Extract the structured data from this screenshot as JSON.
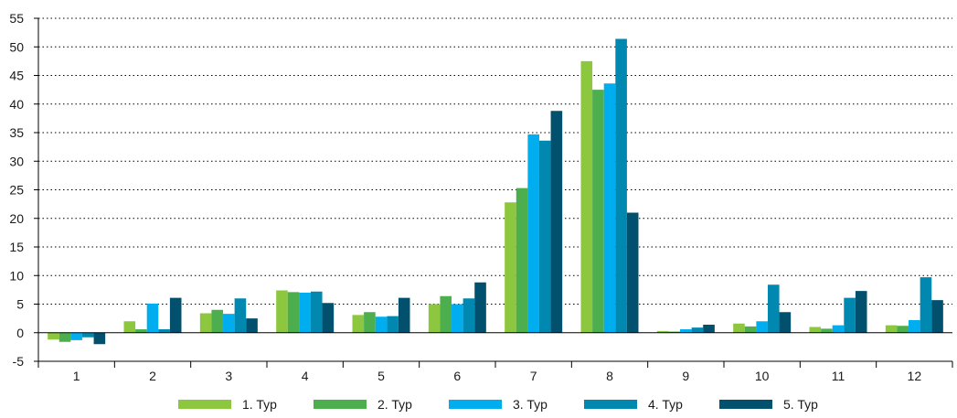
{
  "chart_data": {
    "type": "bar",
    "title": "",
    "xlabel": "",
    "ylabel": "",
    "categories": [
      "1",
      "2",
      "3",
      "4",
      "5",
      "6",
      "7",
      "8",
      "9",
      "10",
      "11",
      "12"
    ],
    "ylim": [
      -5,
      55
    ],
    "yticks": [
      -5,
      0,
      5,
      10,
      15,
      20,
      25,
      30,
      35,
      40,
      45,
      50,
      55
    ],
    "grid": "horizontal-dotted",
    "legend_position": "bottom",
    "series": [
      {
        "name": "1. Typ",
        "color": "#8dc63f",
        "values": [
          -1.2,
          2.0,
          3.4,
          7.4,
          3.1,
          5.0,
          22.8,
          47.5,
          0.3,
          1.6,
          1.0,
          1.3
        ]
      },
      {
        "name": "2. Typ",
        "color": "#4cae4c",
        "values": [
          -1.6,
          0.6,
          4.0,
          7.1,
          3.6,
          6.4,
          25.3,
          42.5,
          0.2,
          1.1,
          0.7,
          1.2
        ]
      },
      {
        "name": "3. Typ",
        "color": "#00aeef",
        "values": [
          -1.3,
          5.1,
          3.3,
          7.0,
          2.8,
          5.0,
          34.7,
          43.6,
          0.6,
          2.0,
          1.3,
          2.2
        ]
      },
      {
        "name": "4. Typ",
        "color": "#0088b0",
        "values": [
          -0.8,
          0.6,
          6.0,
          7.2,
          2.9,
          6.0,
          33.6,
          51.4,
          0.9,
          8.4,
          6.1,
          9.7
        ]
      },
      {
        "name": "5. Typ",
        "color": "#00506e",
        "values": [
          -2.0,
          6.1,
          2.5,
          5.2,
          6.1,
          8.8,
          38.8,
          21.0,
          1.4,
          3.6,
          7.3,
          5.7
        ]
      }
    ]
  }
}
